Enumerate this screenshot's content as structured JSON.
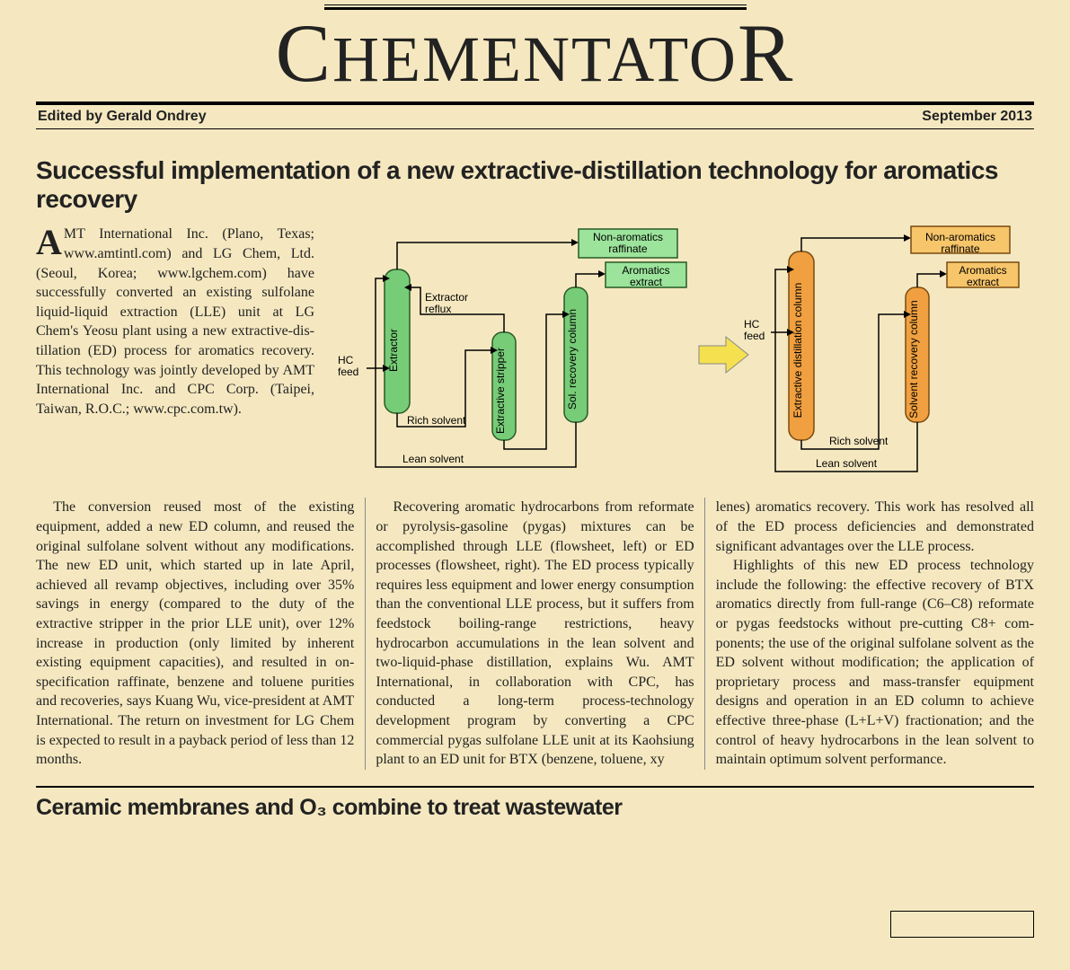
{
  "masthead": {
    "title_mid": "HEMENTATO"
  },
  "edited": {
    "by": "Edited by Gerald Ondrey",
    "date": "September 2013"
  },
  "article": {
    "headline": "Successful implementation of a new extractive-distillation technology for aromatics recovery",
    "lead_first": "MT International Inc. (Plano, Texas; www.amtintl.com) and LG Chem, Ltd. (Seoul, Korea; www.lgchem.com) have success­fully converted an existing sul­folane liquid-liquid extraction (LLE) unit at LG Chem's Yeosu plant using a new extractive-dis­tillation (ED) process for aromat­ics recovery. This technology was jointly developed by AMT Interna­tional Inc. and CPC Corp. (Taipei, Taiwan, R.O.C.; www.cpc.com.tw).",
    "p2": "The conversion reused most of the ex­isting equipment, added a new ED col­umn, and reused the original sulfolane solvent without any modifications. The new ED unit, which started up in late April, achieved all revamp objectives, including over 35% savings in energy (compared to the duty of the extractive stripper in the prior LLE unit), over 12% increase in production (only limited by inherent existing equipment capacities), and resulted in on-specification raffi­nate, benzene and toluene purities and recoveries, says Kuang Wu, vice-presi­dent at AMT International. The return on investment for LG Chem is expected to result in a payback period of less than 12 months.",
    "p3": "Recovering aromatic hydrocarbons from reformate or pyrolysis-gasoline (pygas) mixtures can be accomplished through LLE (flowsheet, left) or ED pro­cesses (flowsheet, right). The ED pro­cess typically requires less equipment and lower energy consumption than the conventional LLE process, but it suffers from feedstock boiling-range restric­tions, heavy hydrocarbon accumulations in the lean solvent and two-liquid-phase distillation, explains Wu. AMT Interna­tional, in collaboration with CPC, has conducted a long-term process-technol­ogy development program by convert­ing a CPC commercial pygas sulfolane LLE unit at its Kaohsiung plant to an ED unit for BTX (benzene, toluene, xy­",
    "p4": "lenes) aromatics recovery. This work has resolved all of the ED process deficien­cies and demonstrated significant ad­vantages over the LLE process.",
    "p5": "Highlights of this new ED process tech­nology include the following: the effective recovery of BTX aromatics directly from full-range (C6–C8) reformate or pygas feedstocks without pre-cutting C8+ com­ponents; the use of the original sulfolane solvent as the ED solvent without modi­fication; the application of proprietary process and mass-transfer equipment designs and operation in an ED column to achieve effective three-phase (L+L+V) fractionation; and the control of heavy hydrocarbons in the lean solvent to main­tain optimum solvent performance."
  },
  "second_headline": "Ceramic membranes and O₃ combine to treat wastewater",
  "flowsheet": {
    "left": {
      "hc_feed": "HC feed",
      "extractor": "Extractor",
      "extractor_reflux": "Extractor reflux",
      "stripper": "Extractive stripper",
      "recovery": "Sol. recovery column",
      "rich": "Rich solvent",
      "lean": "Lean solvent",
      "raffinate": "Non-aromatics raffinate",
      "extract": "Aromatics extract"
    },
    "right": {
      "hc_feed": "HC feed",
      "edcol": "Extractive distillation column",
      "recovery": "Solvent recovery column",
      "rich": "Rich solvent",
      "lean": "Lean solvent",
      "raffinate": "Non-aromatics raffinate",
      "extract": "Aromatics extract"
    },
    "colors": {
      "green_fill": "#77cc77",
      "green_label": "#9ce49c",
      "green_stroke": "#275a27",
      "orange_fill": "#f0a040",
      "orange_label": "#f7c56a",
      "orange_stroke": "#7a4a10",
      "arrow_fill": "#f5e050"
    }
  }
}
